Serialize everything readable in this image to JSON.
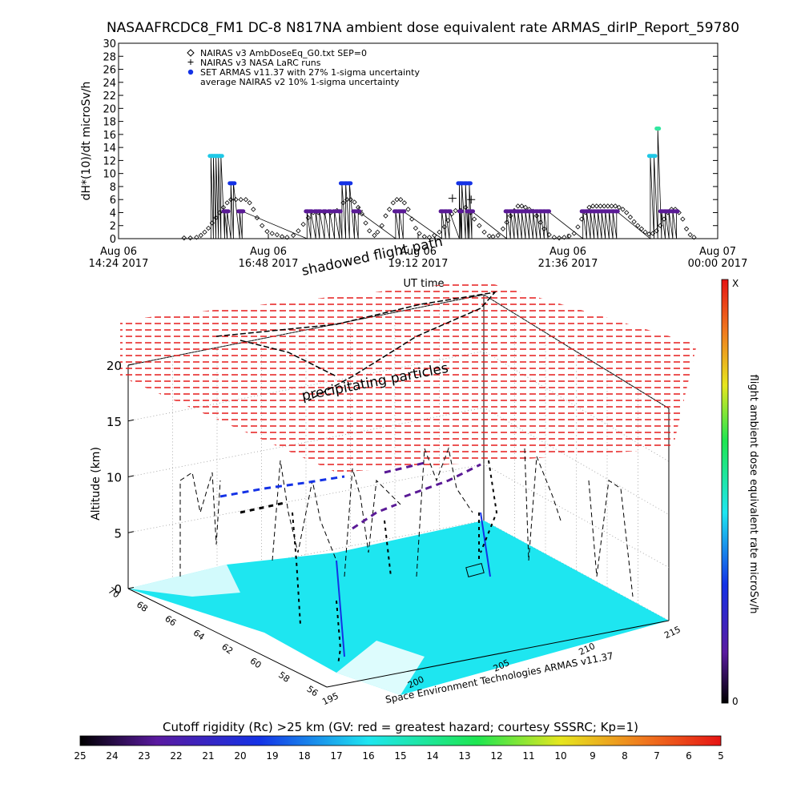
{
  "title": "NASAAFRCDC8_FM1 DC-8   N817NA ambient dose equivalent rate ARMAS_dirIP_Report_59780",
  "colors": {
    "nairas_v3": "#000000",
    "armas_cyan": "#1ec8e6",
    "armas_blue": "#1432e6",
    "armas_purple": "#5a1a96",
    "armas_green": "#32e6a0",
    "map_cyan": "#1ee6f0",
    "shell_red": "#e61e1e"
  },
  "chart_data": [
    {
      "type": "scatter",
      "title": "NASAAFRCDC8_FM1 DC-8   N817NA ambient dose equivalent rate ARMAS_dirIP_Report_59780",
      "xlabel": "UT time",
      "ylabel": "dH*(10)/dt microSv/h",
      "ylim": [
        0,
        30
      ],
      "yticks": [
        0,
        2,
        4,
        6,
        8,
        10,
        12,
        14,
        16,
        18,
        20,
        22,
        24,
        26,
        28,
        30
      ],
      "xlim_hours": [
        14.4,
        24.0
      ],
      "xticks": [
        {
          "h": 14.4,
          "line1": "Aug 06",
          "line2": "14:24 2017"
        },
        {
          "h": 16.8,
          "line1": "Aug 06",
          "line2": "16:48 2017"
        },
        {
          "h": 19.2,
          "line1": "Aug 06",
          "line2": "19:12 2017"
        },
        {
          "h": 21.6,
          "line1": "Aug 06",
          "line2": "21:36 2017"
        },
        {
          "h": 24.0,
          "line1": "Aug 07",
          "line2": "00:00 2017"
        }
      ],
      "legend": [
        {
          "symbol": "diamond",
          "label": "NAIRAS v3 AmbDoseEq_G0.txt SEP=0"
        },
        {
          "symbol": "plus",
          "label": "NAIRAS v3 NASA LaRC runs"
        },
        {
          "symbol": "dot",
          "label": "SET ARMAS v11.37 with 27% 1-sigma uncertainty"
        },
        {
          "symbol": "none",
          "label": "average NAIRAS v2 10% 1-sigma uncertainty"
        }
      ],
      "legend_position": "top-left",
      "series": [
        {
          "name": "NAIRAS v3 AmbDoseEq_G0.txt SEP=0",
          "marker": "diamond",
          "points": [
            [
              15.45,
              0.1
            ],
            [
              15.55,
              0.1
            ],
            [
              15.65,
              0.2
            ],
            [
              15.72,
              0.5
            ],
            [
              15.78,
              1.0
            ],
            [
              15.84,
              1.6
            ],
            [
              15.9,
              2.4
            ],
            [
              15.96,
              3.2
            ],
            [
              16.02,
              4.0
            ],
            [
              16.08,
              4.8
            ],
            [
              16.14,
              5.5
            ],
            [
              16.2,
              6.0
            ],
            [
              16.28,
              6.0
            ],
            [
              16.36,
              6.0
            ],
            [
              16.44,
              6.0
            ],
            [
              16.5,
              5.5
            ],
            [
              16.56,
              4.5
            ],
            [
              16.62,
              3.2
            ],
            [
              16.7,
              2.0
            ],
            [
              16.78,
              1.1
            ],
            [
              16.86,
              0.8
            ],
            [
              16.94,
              0.6
            ],
            [
              17.02,
              0.3
            ],
            [
              17.1,
              0.2
            ],
            [
              17.2,
              0.5
            ],
            [
              17.28,
              1.2
            ],
            [
              17.36,
              2.2
            ],
            [
              17.44,
              3.2
            ],
            [
              17.52,
              4.0
            ],
            [
              17.6,
              4.0
            ],
            [
              17.7,
              4.0
            ],
            [
              17.8,
              4.0
            ],
            [
              17.9,
              4.3
            ],
            [
              18.0,
              5.5
            ],
            [
              18.06,
              6.0
            ],
            [
              18.12,
              6.0
            ],
            [
              18.18,
              5.6
            ],
            [
              18.24,
              4.8
            ],
            [
              18.3,
              3.8
            ],
            [
              18.36,
              2.4
            ],
            [
              18.42,
              1.2
            ],
            [
              18.5,
              0.5
            ],
            [
              18.55,
              1.0
            ],
            [
              18.62,
              2.0
            ],
            [
              18.68,
              3.5
            ],
            [
              18.74,
              4.5
            ],
            [
              18.8,
              5.5
            ],
            [
              18.86,
              6.0
            ],
            [
              18.92,
              6.0
            ],
            [
              18.98,
              5.5
            ],
            [
              19.04,
              4.5
            ],
            [
              19.1,
              3.0
            ],
            [
              19.16,
              1.6
            ],
            [
              19.22,
              0.8
            ],
            [
              19.3,
              0.3
            ],
            [
              19.38,
              0.2
            ],
            [
              19.46,
              0.5
            ],
            [
              19.54,
              1.0
            ],
            [
              19.62,
              1.8
            ],
            [
              19.68,
              2.8
            ],
            [
              19.74,
              3.8
            ],
            [
              19.8,
              4.3
            ],
            [
              19.88,
              4.3
            ],
            [
              19.96,
              4.8
            ],
            [
              20.04,
              4.0
            ],
            [
              20.1,
              3.0
            ],
            [
              20.18,
              2.0
            ],
            [
              20.26,
              1.0
            ],
            [
              20.34,
              0.4
            ],
            [
              20.4,
              0.3
            ],
            [
              20.48,
              0.5
            ],
            [
              20.56,
              1.5
            ],
            [
              20.62,
              2.5
            ],
            [
              20.68,
              3.5
            ],
            [
              20.74,
              4.3
            ],
            [
              20.8,
              5.0
            ],
            [
              20.86,
              5.0
            ],
            [
              20.92,
              4.8
            ],
            [
              20.98,
              4.5
            ],
            [
              21.04,
              4.2
            ],
            [
              21.1,
              3.5
            ],
            [
              21.16,
              2.5
            ],
            [
              21.22,
              1.5
            ],
            [
              21.3,
              0.6
            ],
            [
              21.38,
              0.2
            ],
            [
              21.46,
              0.1
            ],
            [
              21.54,
              0.2
            ],
            [
              21.62,
              0.4
            ],
            [
              21.7,
              0.8
            ],
            [
              21.76,
              1.8
            ],
            [
              21.82,
              3.0
            ],
            [
              21.88,
              4.0
            ],
            [
              21.94,
              4.8
            ],
            [
              22.0,
              5.0
            ],
            [
              22.06,
              5.0
            ],
            [
              22.12,
              5.0
            ],
            [
              22.18,
              5.0
            ],
            [
              22.24,
              5.0
            ],
            [
              22.3,
              5.0
            ],
            [
              22.36,
              5.0
            ],
            [
              22.42,
              4.8
            ],
            [
              22.48,
              4.5
            ],
            [
              22.54,
              4.0
            ],
            [
              22.6,
              3.3
            ],
            [
              22.66,
              2.6
            ],
            [
              22.72,
              2.0
            ],
            [
              22.78,
              1.5
            ],
            [
              22.84,
              1.0
            ],
            [
              22.9,
              0.7
            ],
            [
              22.96,
              0.8
            ],
            [
              23.02,
              1.2
            ],
            [
              23.08,
              2.0
            ],
            [
              23.14,
              3.0
            ],
            [
              23.2,
              4.0
            ],
            [
              23.26,
              4.5
            ],
            [
              23.32,
              4.5
            ],
            [
              23.38,
              4.0
            ],
            [
              23.44,
              3.0
            ],
            [
              23.5,
              1.5
            ],
            [
              23.56,
              0.6
            ],
            [
              23.62,
              0.2
            ]
          ]
        },
        {
          "name": "SET ARMAS v11.37 with 27% 1-sigma uncertainty",
          "marker": "dot",
          "points": [
            [
              15.88,
              12.7,
              "cyan"
            ],
            [
              15.92,
              12.7,
              "cyan"
            ],
            [
              15.96,
              12.7,
              "cyan"
            ],
            [
              16.0,
              12.7,
              "cyan"
            ],
            [
              16.04,
              12.7,
              "cyan"
            ],
            [
              16.1,
              4.2,
              "purple"
            ],
            [
              16.14,
              4.2,
              "purple"
            ],
            [
              16.2,
              8.5,
              "blue"
            ],
            [
              16.24,
              8.5,
              "blue"
            ],
            [
              16.34,
              4.2,
              "purple"
            ],
            [
              16.38,
              4.2,
              "purple"
            ],
            [
              17.42,
              4.2,
              "purple"
            ],
            [
              17.48,
              4.2,
              "purple"
            ],
            [
              17.56,
              4.2,
              "purple"
            ],
            [
              17.62,
              4.2,
              "purple"
            ],
            [
              17.7,
              4.2,
              "purple"
            ],
            [
              17.78,
              4.2,
              "purple"
            ],
            [
              17.86,
              4.2,
              "purple"
            ],
            [
              17.94,
              4.2,
              "purple"
            ],
            [
              17.98,
              8.5,
              "blue"
            ],
            [
              18.04,
              8.5,
              "blue"
            ],
            [
              18.1,
              8.5,
              "blue"
            ],
            [
              18.18,
              4.2,
              "purple"
            ],
            [
              18.24,
              4.2,
              "purple"
            ],
            [
              18.84,
              4.2,
              "purple"
            ],
            [
              18.9,
              4.2,
              "purple"
            ],
            [
              18.96,
              4.2,
              "purple"
            ],
            [
              19.58,
              4.2,
              "purple"
            ],
            [
              19.64,
              4.2,
              "purple"
            ],
            [
              19.7,
              4.2,
              "purple"
            ],
            [
              19.86,
              8.5,
              "blue"
            ],
            [
              19.9,
              8.5,
              "blue"
            ],
            [
              19.96,
              8.5,
              "blue"
            ],
            [
              20.02,
              8.5,
              "blue"
            ],
            [
              19.88,
              4.2,
              "purple"
            ],
            [
              20.0,
              4.2,
              "purple"
            ],
            [
              20.06,
              4.2,
              "purple"
            ],
            [
              20.62,
              4.2,
              "purple"
            ],
            [
              20.68,
              4.2,
              "purple"
            ],
            [
              20.74,
              4.2,
              "purple"
            ],
            [
              20.8,
              4.2,
              "purple"
            ],
            [
              20.86,
              4.2,
              "purple"
            ],
            [
              20.92,
              4.2,
              "purple"
            ],
            [
              20.98,
              4.2,
              "purple"
            ],
            [
              21.04,
              4.2,
              "purple"
            ],
            [
              21.1,
              4.2,
              "purple"
            ],
            [
              21.16,
              4.2,
              "purple"
            ],
            [
              21.22,
              4.2,
              "purple"
            ],
            [
              21.28,
              4.2,
              "purple"
            ],
            [
              21.84,
              4.2,
              "purple"
            ],
            [
              21.9,
              4.2,
              "purple"
            ],
            [
              21.96,
              4.2,
              "purple"
            ],
            [
              22.02,
              4.2,
              "purple"
            ],
            [
              22.08,
              4.2,
              "purple"
            ],
            [
              22.14,
              4.2,
              "purple"
            ],
            [
              22.2,
              4.2,
              "purple"
            ],
            [
              22.26,
              4.2,
              "purple"
            ],
            [
              22.32,
              4.2,
              "purple"
            ],
            [
              22.38,
              4.2,
              "purple"
            ],
            [
              22.92,
              12.7,
              "cyan"
            ],
            [
              22.98,
              12.7,
              "cyan"
            ],
            [
              23.04,
              16.9,
              "green"
            ],
            [
              23.1,
              4.2,
              "purple"
            ],
            [
              23.16,
              4.2,
              "purple"
            ],
            [
              23.22,
              4.2,
              "purple"
            ],
            [
              23.28,
              4.2,
              "purple"
            ],
            [
              23.34,
              4.2,
              "purple"
            ]
          ]
        },
        {
          "name": "NAIRAS v3 NASA LaRC runs",
          "marker": "plus",
          "points": [
            [
              18.25,
              4.3
            ],
            [
              19.75,
              6.2
            ],
            [
              20.05,
              6.0
            ]
          ]
        }
      ]
    },
    {
      "type": "heatmap",
      "zlabel": "Altitude (km)",
      "zticks": [
        0,
        5,
        10,
        15,
        20
      ],
      "yticks": [
        56,
        58,
        60,
        62,
        64,
        66,
        68,
        70
      ],
      "xticks": [
        195,
        200,
        205,
        210,
        215
      ],
      "annotations": [
        "shadowed flight path",
        "precipitating particles",
        "UT time"
      ],
      "credit": "Space Environment Technologies ARMAS v11.37",
      "right_colorbar": {
        "label": "flight ambient dose equivalent rate microSv/h",
        "top": "X",
        "bottom": "0"
      },
      "bottom_colorbar": {
        "label": "Cutoff rigidity (Rc) >25 km (GV: red = greatest hazard; courtesy SSSRC; Kp=1)",
        "ticks": [
          25,
          24,
          23,
          22,
          21,
          20,
          19,
          18,
          17,
          16,
          15,
          14,
          13,
          12,
          11,
          10,
          9,
          8,
          7,
          6,
          5
        ]
      }
    }
  ]
}
